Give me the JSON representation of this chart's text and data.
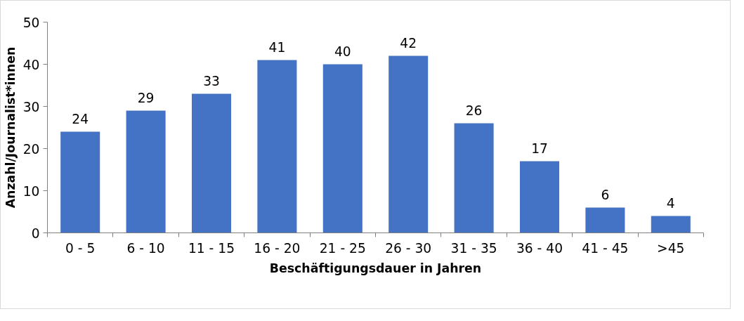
{
  "chart_data": {
    "type": "bar",
    "xlabel": "Beschäftigungsdauer in Jahren",
    "ylabel": "Anzahl/Journalist*innen",
    "categories": [
      "0 - 5",
      "6 - 10",
      "11 - 15",
      "16 - 20",
      "21 - 25",
      "26 - 30",
      "31 - 35",
      "36 - 40",
      "41 - 45",
      ">45"
    ],
    "values": [
      24,
      29,
      33,
      41,
      40,
      42,
      26,
      17,
      6,
      4
    ],
    "color": "#4472c4",
    "ylim": [
      0,
      50
    ],
    "yticks": [
      0,
      10,
      20,
      30,
      40,
      50
    ],
    "grid": false,
    "data_labels": true
  }
}
